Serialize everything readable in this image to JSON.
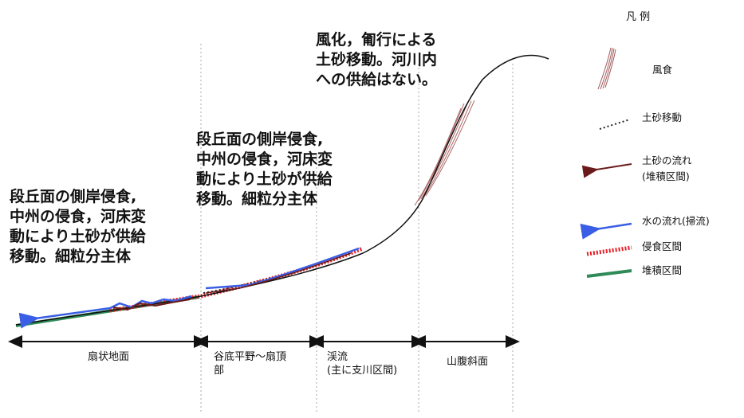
{
  "annotations": {
    "left": "段丘面の側岸侵食,\n中州の侵食，河床変\n動により土砂が供給\n移動。細粒分主体",
    "middle": "段丘面の側岸侵食,\n中州の侵食，河床変\n動により土砂が供給\n移動。細粒分主体",
    "top": "風化，匍行による\n土砂移動。河川内\nへの供給はない。"
  },
  "zones": [
    {
      "label": "扇状地面"
    },
    {
      "label": "谷底平野～扇頂\n部"
    },
    {
      "label": "渓流\n(主に支川区間)"
    },
    {
      "label": "山腹斜面"
    }
  ],
  "legend": {
    "title": "凡 例",
    "items": [
      {
        "label": "風食",
        "color": "#a05a5a",
        "icon": "wind-erosion-hatch"
      },
      {
        "label": "土砂移動",
        "color": "#222222",
        "icon": "dotted-line"
      },
      {
        "label": "土砂の流れ\n(堆積区間)",
        "color": "#6b1a1a",
        "icon": "arrow-left"
      },
      {
        "label": "水の流れ(掃流)",
        "color": "#3a5ee6",
        "icon": "arrow-left"
      },
      {
        "label": "侵食区間",
        "color": "#e8202a",
        "icon": "hatched-line"
      },
      {
        "label": "堆積区間",
        "color": "#2e8b57",
        "icon": "solid-line"
      }
    ]
  }
}
